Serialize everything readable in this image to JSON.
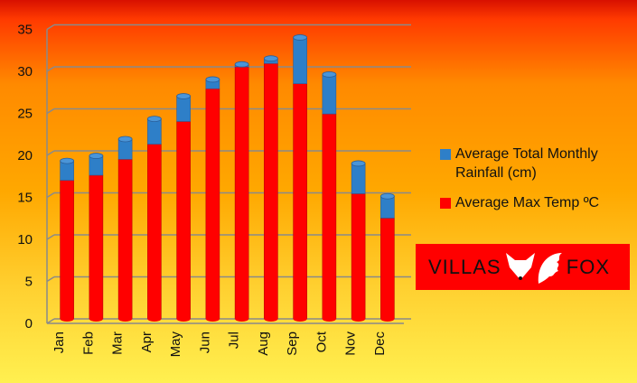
{
  "chart_data": {
    "type": "bar",
    "stacked": true,
    "style": "3d-cylinder",
    "categories": [
      "Jan",
      "Feb",
      "Mar",
      "Apr",
      "May",
      "Jun",
      "Jul",
      "Aug",
      "Sep",
      "Oct",
      "Nov",
      "Dec"
    ],
    "series": [
      {
        "name": "Average Max Temp ºC",
        "color": "#ff0000",
        "values": [
          16.5,
          17.1,
          19.0,
          20.8,
          23.5,
          27.4,
          30.0,
          30.4,
          28.0,
          24.4,
          14.9,
          12.0
        ]
      },
      {
        "name": "Average Total Monthly Rainfall (cm)",
        "color": "#2e7fc8",
        "values": [
          2.3,
          2.3,
          2.4,
          3.0,
          3.0,
          1.1,
          0.3,
          0.6,
          5.5,
          4.7,
          3.6,
          2.6
        ]
      }
    ],
    "yticks": [
      0,
      5,
      10,
      15,
      20,
      25,
      30,
      35
    ],
    "ylim": [
      0,
      35
    ],
    "grid": true,
    "legend": "right"
  },
  "legend": {
    "items": [
      {
        "label": "Average Total Monthly Rainfall (cm)",
        "color": "#2e7fc8"
      },
      {
        "label": "Average Max Temp ºC",
        "color": "#ff0000"
      }
    ]
  },
  "logo": {
    "left": "VILLAS",
    "right": "FOX"
  }
}
